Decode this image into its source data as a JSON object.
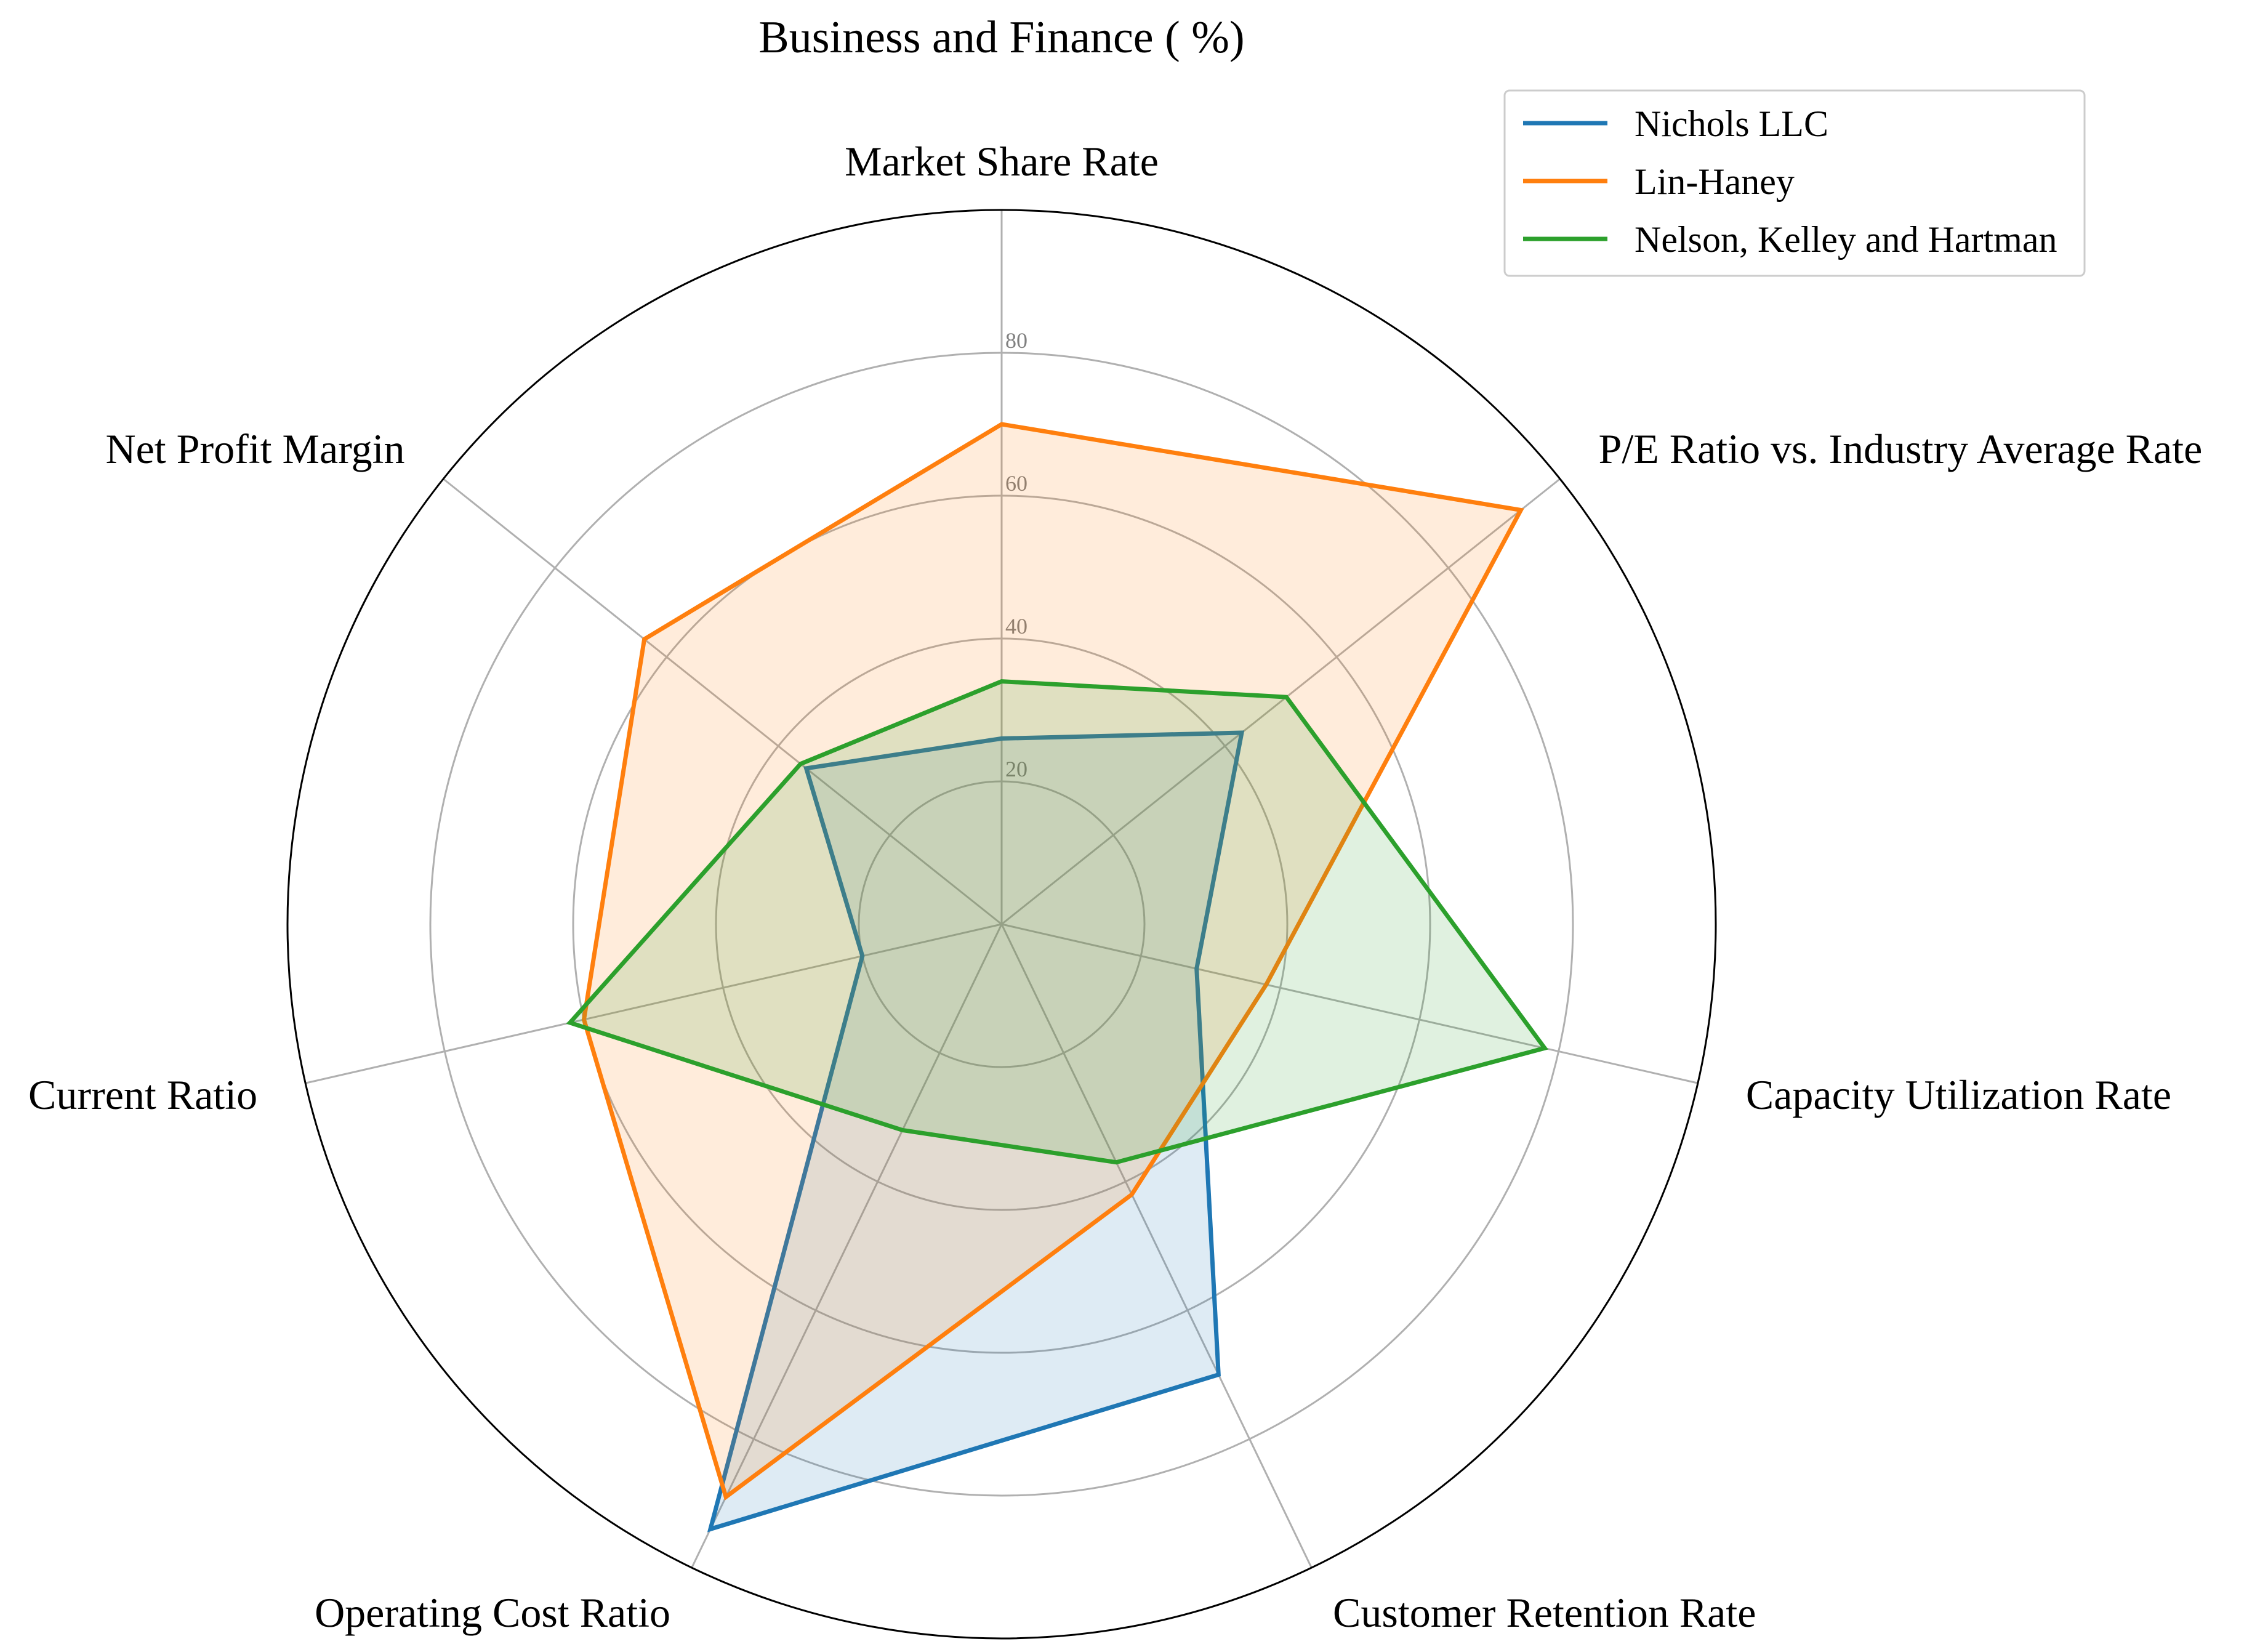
{
  "chart_data": {
    "type": "radar",
    "title": "Business and Finance ( %)",
    "categories": [
      "Market Share Rate",
      "P/E Ratio vs. Industry Average Rate",
      "Capacity Utilization Rate",
      "Customer Retention Rate",
      "Operating Cost Ratio",
      "Current Ratio",
      "Net Profit Margin"
    ],
    "rlim": [
      0,
      100
    ],
    "rticks": [
      20,
      40,
      60,
      80
    ],
    "grid": true,
    "legend_position": "top-right",
    "series": [
      {
        "name": "Nichols LLC",
        "color": "#1f77b4",
        "values": [
          26,
          43,
          28,
          70,
          94,
          20,
          35
        ]
      },
      {
        "name": "Lin-Haney",
        "color": "#ff7f0e",
        "values": [
          70,
          93,
          38,
          42,
          89,
          60,
          64
        ]
      },
      {
        "name": "Nelson, Kelley and Hartman",
        "color": "#2ca02c",
        "values": [
          34,
          51,
          78,
          37,
          32,
          62,
          36
        ]
      }
    ]
  }
}
